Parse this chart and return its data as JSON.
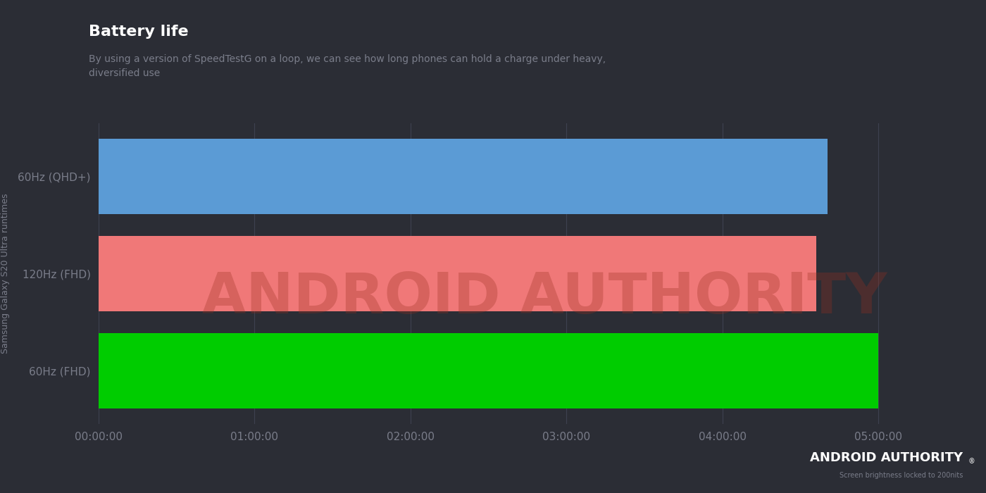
{
  "title": "Battery life",
  "subtitle": "By using a version of SpeedTestG on a loop, we can see how long phones can hold a charge under heavy,\ndiversified use",
  "ylabel": "Samsung Galaxy S20 Ultra runtimes",
  "background_color": "#2b2d35",
  "plot_bg_color": "#2b2d35",
  "text_color_title": "#ffffff",
  "text_color_sub": "#7a7d8a",
  "text_color_axis": "#7a7d8a",
  "grid_color": "#3e4150",
  "categories": [
    "60Hz (QHD+)",
    "120Hz (FHD)",
    "60Hz (FHD)"
  ],
  "values_seconds": [
    16830,
    16560,
    18000
  ],
  "bar_colors": [
    "#5b9bd5",
    "#f07878",
    "#00cc00"
  ],
  "bar_height": 0.78,
  "x_ticks_seconds": [
    0,
    3600,
    7200,
    10800,
    14400,
    18000
  ],
  "x_tick_labels": [
    "00:00:00",
    "01:00:00",
    "02:00:00",
    "03:00:00",
    "04:00:00",
    "05:00:00"
  ],
  "xlim_max": 19800,
  "watermark_text": "ANDROID AUTHORITY",
  "watermark_subtext": "®",
  "footnote": "Screen brightness locked to 200nits",
  "branding_label": "ANDROID AUTHORITY"
}
